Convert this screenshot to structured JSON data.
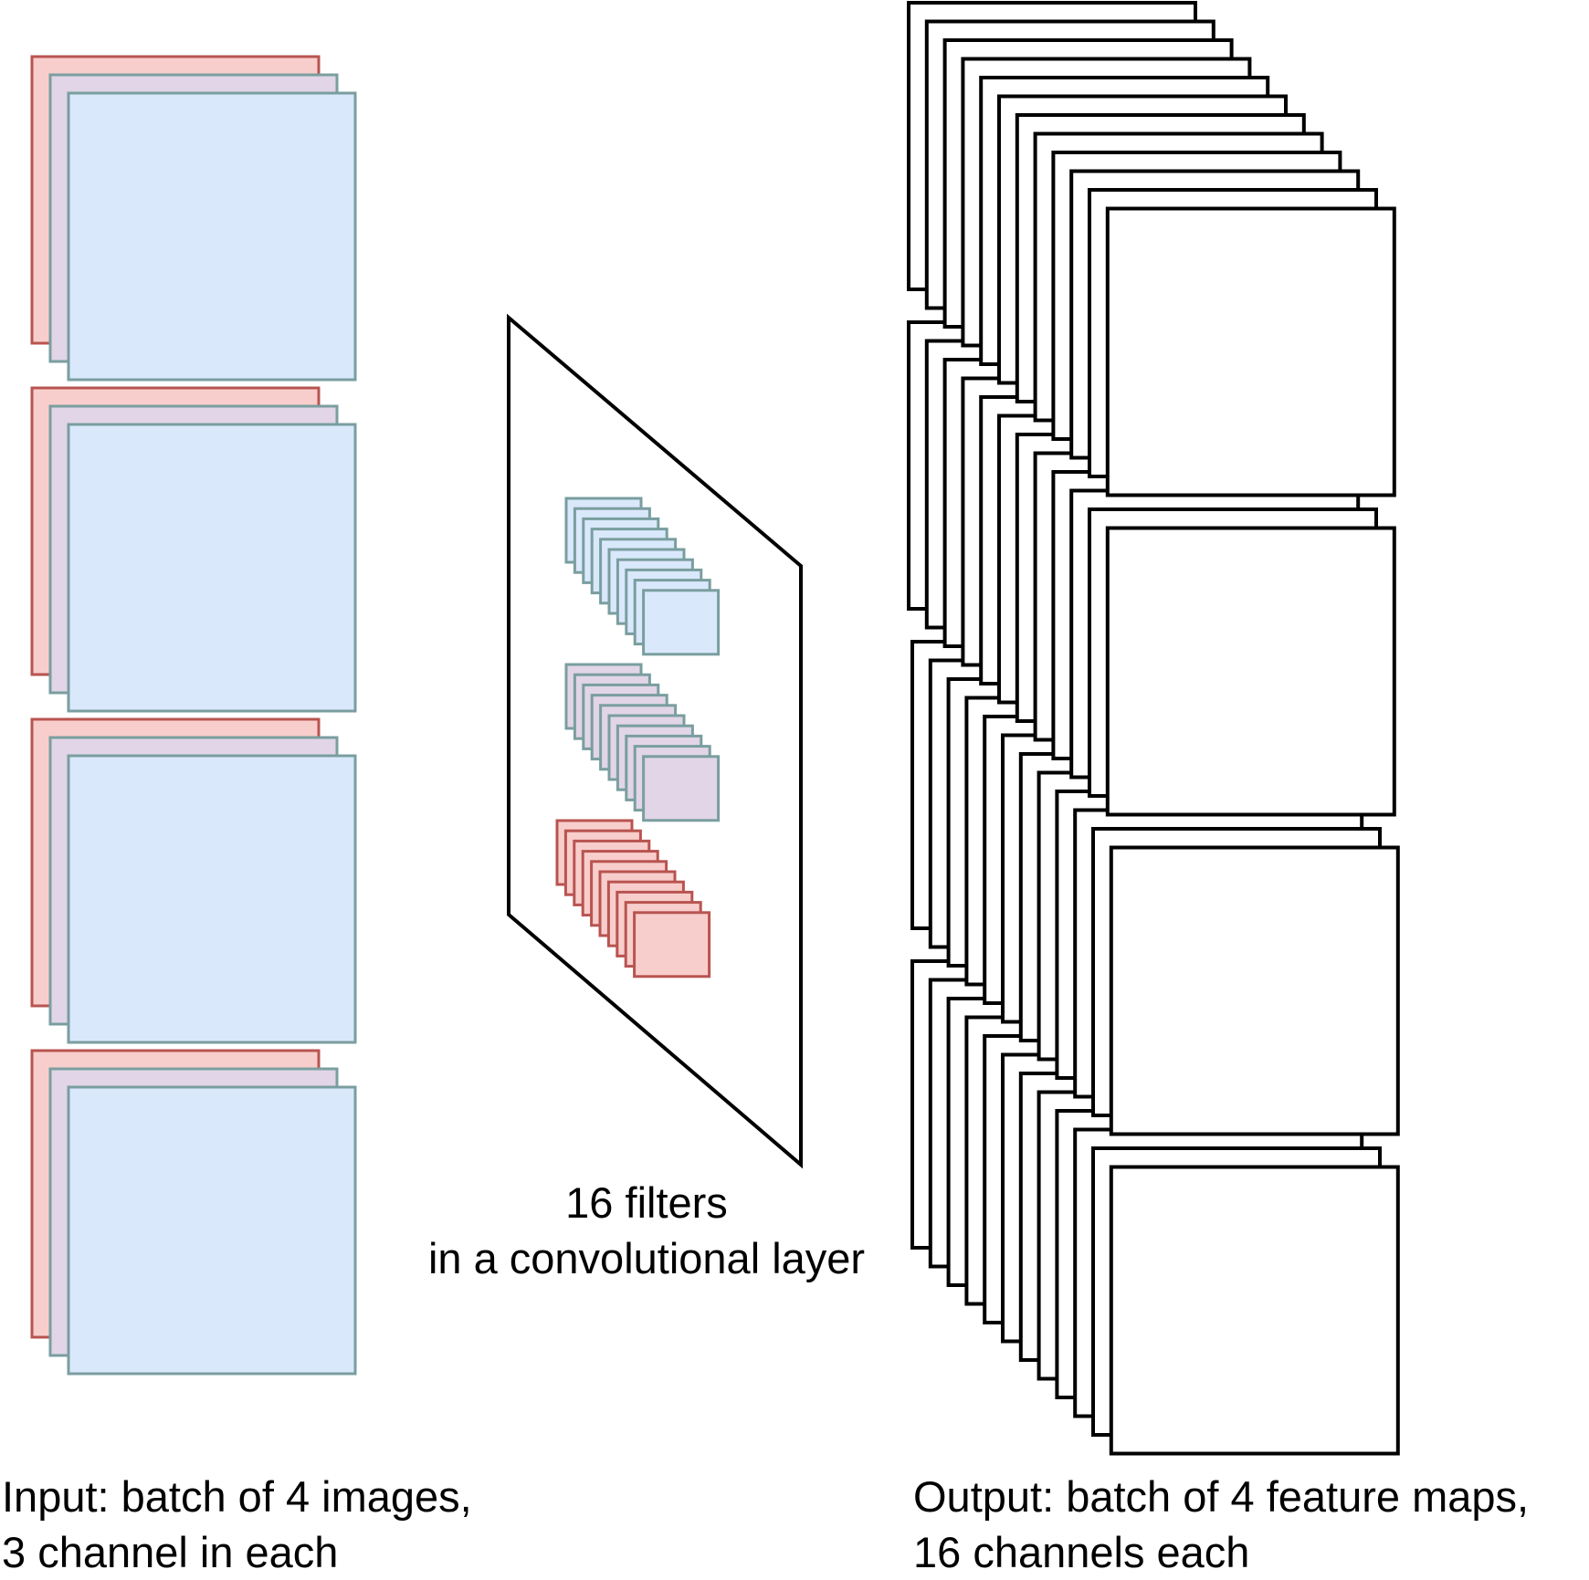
{
  "colors": {
    "red_fill": "#f8cecc",
    "red_stroke": "#b85450",
    "mid_fill": "#e1d5e7",
    "blue_fill": "#dae8fc",
    "teal_stroke": "#6c8ebf",
    "teal_border": "#7a9e9f",
    "output_stroke": "#000000",
    "output_fill": "#ffffff"
  },
  "input": {
    "caption_line1": "Input: batch of 4 images,",
    "caption_line2": "3 channel in each",
    "batch_size": 4,
    "channels_per_image": 3
  },
  "layer": {
    "caption_line1": "16 filters",
    "caption_line2": "in a convolutional layer",
    "filter_count": 16,
    "filter_channels": 3
  },
  "output": {
    "caption_line1": "Output: batch of 4 feature maps,",
    "caption_line2": "16 channels each",
    "batch_size": 4,
    "channels_per_map": 16
  }
}
